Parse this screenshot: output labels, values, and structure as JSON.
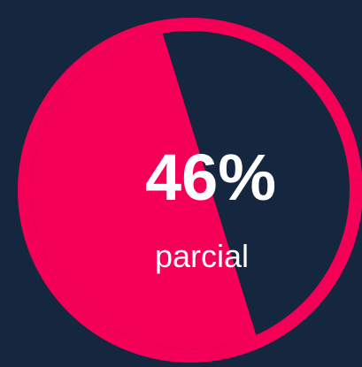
{
  "chart_data": {
    "type": "gauge",
    "value": 46,
    "value_label": "46%",
    "label": "parcial",
    "color": "#f50057",
    "background": "#14273f"
  }
}
